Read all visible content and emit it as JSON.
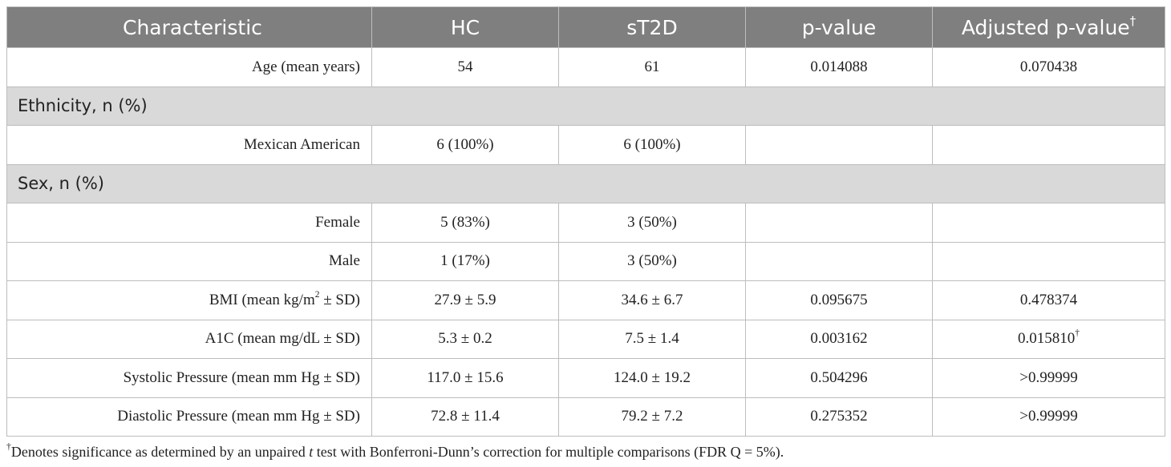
{
  "header": {
    "characteristic": "Characteristic",
    "hc": "HC",
    "st2d": "sT2D",
    "p_value": "p-value",
    "adjusted_p_value": "Adjusted p-value",
    "dagger": "†"
  },
  "rows": {
    "age": {
      "label": "Age (mean years)",
      "hc": "54",
      "st2d": "61",
      "p": "0.014088",
      "adj": "0.070438"
    },
    "ethnicity_section": "Ethnicity, n (%)",
    "mexican_american": {
      "label": "Mexican American",
      "hc": "6 (100%)",
      "st2d": "6 (100%)",
      "p": "",
      "adj": ""
    },
    "sex_section": "Sex, n (%)",
    "female": {
      "label": "Female",
      "hc": "5 (83%)",
      "st2d": "3 (50%)",
      "p": "",
      "adj": ""
    },
    "male": {
      "label": "Male",
      "hc": "1 (17%)",
      "st2d": "3 (50%)",
      "p": "",
      "adj": ""
    },
    "bmi": {
      "label_pre": "BMI (mean kg/m",
      "label_sup": "2",
      "label_post": " ± SD)",
      "hc": "27.9 ± 5.9",
      "st2d": "34.6 ± 6.7",
      "p": "0.095675",
      "adj": "0.478374"
    },
    "a1c": {
      "label": "A1C (mean mg/dL ± SD)",
      "hc": "5.3 ± 0.2",
      "st2d": "7.5 ± 1.4",
      "p": "0.003162",
      "adj": "0.015810",
      "adj_mark": "†"
    },
    "systolic": {
      "label": "Systolic Pressure (mean mm Hg ± SD)",
      "hc": "117.0 ± 15.6",
      "st2d": "124.0 ± 19.2",
      "p": "0.504296",
      "adj": ">0.99999"
    },
    "diastolic": {
      "label": "Diastolic Pressure (mean mm Hg ± SD)",
      "hc": "72.8 ± 11.4",
      "st2d": "79.2 ± 7.2",
      "p": "0.275352",
      "adj": ">0.99999"
    }
  },
  "footnote": {
    "mark": "†",
    "text_pre": "Denotes significance as determined by an unpaired ",
    "text_italic": "t",
    "text_post": " test with Bonferroni-Dunn’s correction for multiple comparisons (FDR Q = 5%)."
  }
}
